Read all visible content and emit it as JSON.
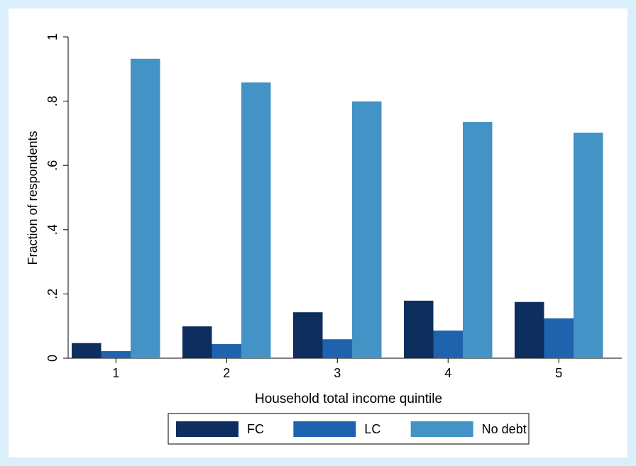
{
  "chart_data": {
    "type": "bar",
    "categories": [
      "1",
      "2",
      "3",
      "4",
      "5"
    ],
    "series": [
      {
        "name": "FC",
        "values": [
          0.047,
          0.099,
          0.143,
          0.179,
          0.175
        ],
        "color": "#0d2e5e"
      },
      {
        "name": "LC",
        "values": [
          0.022,
          0.044,
          0.059,
          0.086,
          0.124
        ],
        "color": "#1f63ae"
      },
      {
        "name": "No debt",
        "values": [
          0.932,
          0.858,
          0.799,
          0.735,
          0.702
        ],
        "color": "#4393c6"
      }
    ],
    "xlabel": "Household total income quintile",
    "ylabel": "Fraction of respondents",
    "ylim": [
      0,
      1
    ],
    "yticks": [
      0,
      0.2,
      0.4,
      0.6,
      0.8,
      1
    ],
    "ytick_labels": [
      "0",
      ".2",
      ".4",
      ".6",
      ".8",
      "1"
    ],
    "grid": false,
    "legend_position": "bottom-center"
  }
}
